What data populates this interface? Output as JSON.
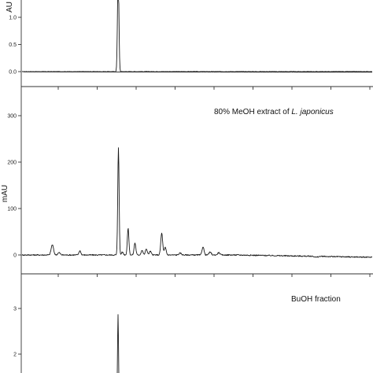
{
  "chart_data": [
    {
      "type": "line",
      "panel": "top",
      "annotation": "",
      "ylabel": "AU",
      "y_ticks": [
        "0.0",
        "0.5",
        "1.0"
      ],
      "tick_values": [
        0,
        0.5,
        1.0
      ],
      "peaks": [
        {
          "x": 150.2,
          "height": 1.85,
          "width": 0.9
        }
      ],
      "baseline": 0.0,
      "noise": 0.004,
      "drift": 0.0,
      "drift_from_x": 200,
      "baseline_overlay": {
        "start_x": 30,
        "start_y": -0.005,
        "end_y": -0.01
      }
    },
    {
      "type": "line",
      "panel": "middle",
      "annotation_parts": [
        "80% MeOH extract of ",
        "L. japonicus"
      ],
      "ylabel": "mAU",
      "y_ticks": [
        "0",
        "100",
        "200",
        "300"
      ],
      "tick_values": [
        0,
        100,
        200,
        300
      ],
      "peaks": [
        {
          "x": 66.5,
          "height": 22,
          "width": 1.5
        },
        {
          "x": 75,
          "height": 5,
          "width": 1.5
        },
        {
          "x": 101.5,
          "height": 9,
          "width": 1.2
        },
        {
          "x": 150.5,
          "height": 232,
          "width": 0.85
        },
        {
          "x": 155.5,
          "height": 6,
          "width": 1.2
        },
        {
          "x": 162.8,
          "height": 57,
          "width": 1.0
        },
        {
          "x": 171.5,
          "height": 26,
          "width": 1.1
        },
        {
          "x": 180.5,
          "height": 10,
          "width": 1.2
        },
        {
          "x": 186,
          "height": 13,
          "width": 1.2
        },
        {
          "x": 191,
          "height": 8,
          "width": 1.2
        },
        {
          "x": 205.5,
          "height": 47,
          "width": 1.2
        },
        {
          "x": 210,
          "height": 16,
          "width": 1.2
        },
        {
          "x": 229,
          "height": 4,
          "width": 1.5
        },
        {
          "x": 258,
          "height": 18,
          "width": 1.2
        },
        {
          "x": 267,
          "height": 6,
          "width": 1.4
        },
        {
          "x": 278,
          "height": 5,
          "width": 1.4
        },
        {
          "x": 402,
          "height": -2,
          "width": 2
        }
      ],
      "baseline": 0,
      "noise": 1.2,
      "drift": -5,
      "drift_from_x": 300
    },
    {
      "type": "line",
      "panel": "bottom",
      "annotation": "BuOH fraction",
      "ylabel": "",
      "y_ticks": [
        "1",
        "2",
        "3"
      ],
      "tick_values": [
        1,
        2,
        3
      ],
      "peaks": [
        {
          "x": 150,
          "height": 2.87,
          "width": 0.8
        }
      ],
      "baseline": 0.0,
      "noise": 0.005,
      "drift": 0.0,
      "drift_from_x": 200
    }
  ]
}
